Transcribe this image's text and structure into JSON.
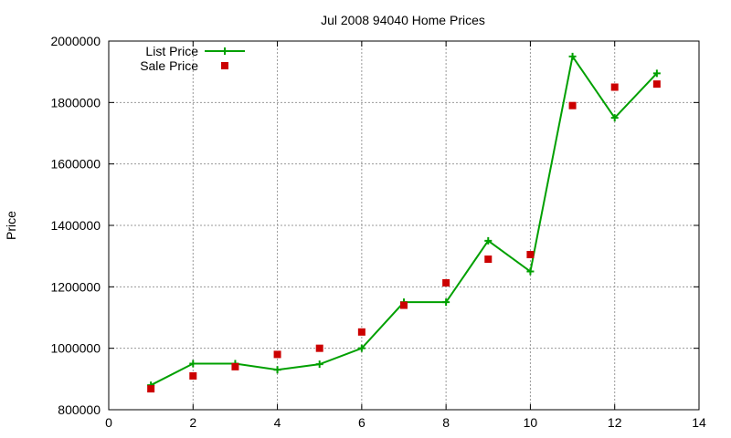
{
  "chart_data": {
    "type": "line",
    "title": "Jul 2008 94040 Home Prices",
    "xlabel": "",
    "ylabel": "Price",
    "xlim": [
      0,
      14
    ],
    "ylim": [
      800000,
      2000000
    ],
    "xticks": [
      0,
      2,
      4,
      6,
      8,
      10,
      12,
      14
    ],
    "yticks": [
      800000,
      1000000,
      1200000,
      1400000,
      1600000,
      1800000,
      2000000
    ],
    "grid": true,
    "legend_position": "top-left",
    "colors": {
      "list": "#00a000",
      "sale": "#cc0000"
    },
    "series": [
      {
        "name": "List Price",
        "style": "line-with-plus-markers",
        "x": [
          1,
          2,
          3,
          4,
          5,
          6,
          7,
          8,
          9,
          10,
          11,
          12,
          13
        ],
        "y": [
          880000,
          950000,
          950000,
          930000,
          948000,
          1000000,
          1150000,
          1150000,
          1350000,
          1250000,
          1950000,
          1750000,
          1895000
        ]
      },
      {
        "name": "Sale Price",
        "style": "square-points",
        "x": [
          1,
          2,
          3,
          4,
          5,
          6,
          7,
          8,
          9,
          10,
          11,
          12,
          13
        ],
        "y": [
          868000,
          910000,
          940000,
          980000,
          1000000,
          1053000,
          1140000,
          1213000,
          1290000,
          1305000,
          1790000,
          1850000,
          1860000
        ]
      }
    ]
  }
}
